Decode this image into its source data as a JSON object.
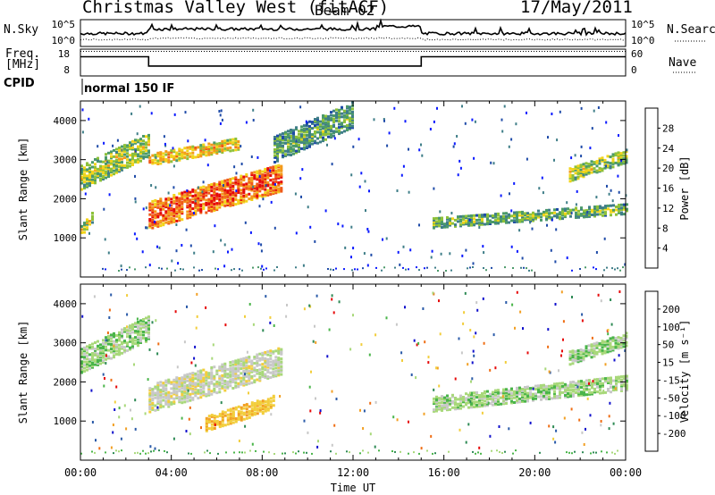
{
  "header": {
    "title": "Christmas Valley West (fitACF)",
    "beam": "Beam 02",
    "date": "17/May/2011"
  },
  "noise_panel": {
    "left_label": "N.Sky",
    "right_label": "N.Search",
    "left_ticks": [
      "10^5",
      "10^0"
    ],
    "right_ticks": [
      "10^5",
      "10^0"
    ]
  },
  "freq_panel": {
    "left_label_1": "Freq.",
    "left_label_2": "[MHz]",
    "right_label": "Nave",
    "left_ticks": [
      "18",
      "8"
    ],
    "right_ticks": [
      "60",
      "0"
    ],
    "series": {
      "freq_mhz": [
        [
          0,
          15.5
        ],
        [
          3,
          15.5
        ],
        [
          3,
          11.5
        ],
        [
          15,
          11.5
        ],
        [
          15,
          15.5
        ],
        [
          24,
          15.5
        ]
      ],
      "nave_dotted": 55
    }
  },
  "cpid": {
    "label": "CPID",
    "text": "normal 150 IF"
  },
  "colors": {
    "power": [
      "#0b1aff",
      "#1f4ba8",
      "#3f7e88",
      "#4c9a6a",
      "#8dc13a",
      "#f2d41a",
      "#f39a1a",
      "#ef5a18",
      "#e60a0a"
    ],
    "velocity": [
      "#1111cc",
      "#2a5aa8",
      "#2e8a55",
      "#4ab54a",
      "#a8d87a",
      "#c8c8c8",
      "#f2ce3c",
      "#f2a024",
      "#ef6e14",
      "#e60a0a"
    ]
  },
  "chart_data": [
    {
      "type": "heatmap",
      "name": "power",
      "ylabel": "Slant Range [km]",
      "yticks": [
        "1000",
        "2000",
        "3000",
        "4000"
      ],
      "ylim": [
        0,
        4500
      ],
      "colorbar_label": "Power [dB]",
      "colorbar_ticks": [
        "4",
        "8",
        "12",
        "16",
        "20",
        "24",
        "28"
      ],
      "colorbar_range": [
        0,
        32
      ],
      "features": [
        {
          "t0": 0.0,
          "t1": 3.0,
          "r0": 2300,
          "r1": 3700,
          "level": 0.5,
          "desc": "early arc"
        },
        {
          "t0": 0.0,
          "t1": 0.5,
          "r0": 1100,
          "r1": 1700,
          "level": 0.55,
          "desc": "low patch"
        },
        {
          "t0": 3.0,
          "t1": 8.8,
          "r0": 1300,
          "r1": 2900,
          "level": 0.85,
          "desc": "strong rising band"
        },
        {
          "t0": 3.0,
          "t1": 7.0,
          "r0": 2900,
          "r1": 3600,
          "level": 0.65,
          "desc": "upper band"
        },
        {
          "t0": 8.5,
          "t1": 12.0,
          "r0": 3000,
          "r1": 4500,
          "level": 0.35,
          "desc": "scattered"
        },
        {
          "t0": 15.5,
          "t1": 24.0,
          "r0": 1300,
          "r1": 1900,
          "level": 0.4,
          "desc": "afternoon band"
        },
        {
          "t0": 21.5,
          "t1": 24.0,
          "r0": 2500,
          "r1": 3300,
          "level": 0.5,
          "desc": "late arc"
        }
      ]
    },
    {
      "type": "heatmap",
      "name": "velocity",
      "ylabel": "Slant Range [km]",
      "yticks": [
        "1000",
        "2000",
        "3000",
        "4000"
      ],
      "ylim": [
        0,
        4500
      ],
      "colorbar_label": "Velocity [m s⁻¹]",
      "colorbar_ticks": [
        "200",
        "100",
        "50",
        "15",
        "-15",
        "-50",
        "-100",
        "-200"
      ],
      "colorbar_range": [
        -250,
        250
      ],
      "xlabel": "Time UT",
      "xticks": [
        "00:00",
        "04:00",
        "08:00",
        "12:00",
        "16:00",
        "20:00",
        "00:00"
      ],
      "xlim": [
        0,
        24
      ],
      "features": [
        {
          "t0": 0.0,
          "t1": 3.0,
          "r0": 2300,
          "r1": 3700,
          "vel": 0,
          "desc": "ground scatter"
        },
        {
          "t0": 3.0,
          "t1": 8.8,
          "r0": 1300,
          "r1": 2900,
          "vel": -30,
          "desc": "mixed"
        },
        {
          "t0": 5.5,
          "t1": 8.5,
          "r0": 800,
          "r1": 1700,
          "vel": -90,
          "desc": "fast orange streak"
        },
        {
          "t0": 15.5,
          "t1": 24.0,
          "r0": 1300,
          "r1": 2200,
          "vel": 0,
          "desc": "ground scatter band"
        },
        {
          "t0": 21.5,
          "t1": 24.0,
          "r0": 2500,
          "r1": 3300,
          "vel": 0,
          "desc": "late arc"
        }
      ]
    }
  ]
}
